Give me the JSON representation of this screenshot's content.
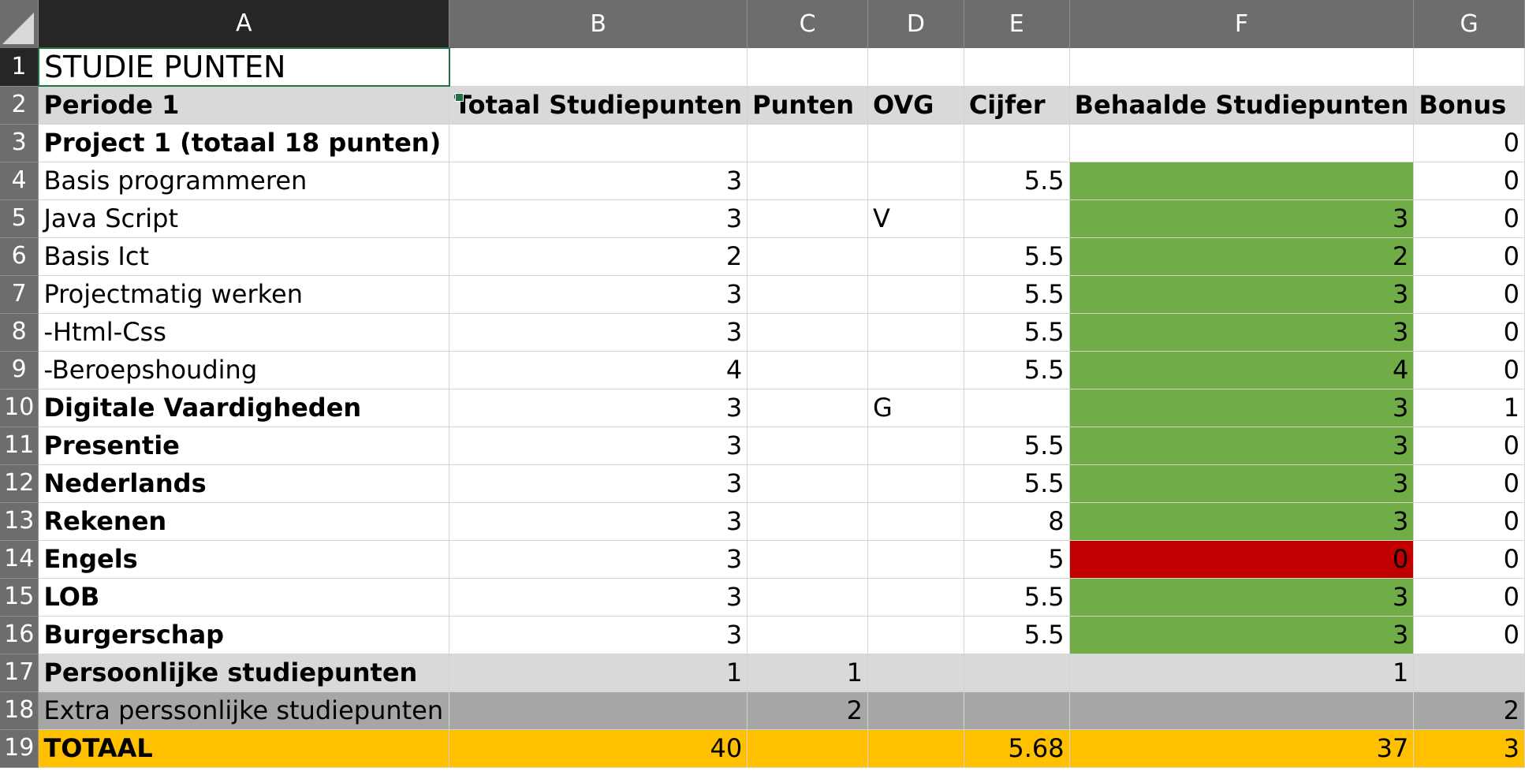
{
  "colors": {
    "header_bg": "#6d6d6d",
    "selected_header_bg": "#262626",
    "selection_border": "#217346",
    "band_light_gray": "#d9d9d9",
    "band_dark_gray": "#a6a6a6",
    "total_gold": "#ffc000",
    "pass_green": "#70ad47",
    "fail_red": "#c00000"
  },
  "icons": {
    "corner": "select-all-triangle-icon"
  },
  "columns": [
    "A",
    "B",
    "C",
    "D",
    "E",
    "F",
    "G"
  ],
  "row_numbers": [
    "1",
    "2",
    "3",
    "4",
    "5",
    "6",
    "7",
    "8",
    "9",
    "10",
    "11",
    "12",
    "13",
    "14",
    "15",
    "16",
    "17",
    "18",
    "19"
  ],
  "selected_cell": "A1",
  "cells": {
    "r1": {
      "a": "STUDIE PUNTEN"
    },
    "r2": {
      "a": "Periode 1",
      "b": "Totaal Studiepunten",
      "c": "Punten",
      "d": "OVG",
      "e": "Cijfer",
      "f": "Behaalde Studiepunten",
      "g": "Bonus"
    },
    "r3": {
      "a": "Project 1 (totaal 18 punten)",
      "g": "0"
    },
    "r4": {
      "a": "Basis programmeren",
      "b": "3",
      "e": "5.5",
      "g": "0"
    },
    "r5": {
      "a": "Java Script",
      "b": "3",
      "d": "V",
      "f": "3",
      "g": "0"
    },
    "r6": {
      "a": "Basis Ict",
      "b": "2",
      "e": "5.5",
      "f": "2",
      "g": "0"
    },
    "r7": {
      "a": "Projectmatig werken",
      "b": "3",
      "e": "5.5",
      "f": "3",
      "g": "0"
    },
    "r8": {
      "a": "-Html-Css",
      "b": "3",
      "e": "5.5",
      "f": "3",
      "g": "0"
    },
    "r9": {
      "a": "-Beroepshouding",
      "b": "4",
      "e": "5.5",
      "f": "4",
      "g": "0"
    },
    "r10": {
      "a": "Digitale Vaardigheden",
      "b": "3",
      "d": "G",
      "f": "3",
      "g": "1"
    },
    "r11": {
      "a": "Presentie",
      "b": "3",
      "e": "5.5",
      "f": "3",
      "g": "0"
    },
    "r12": {
      "a": "Nederlands",
      "b": "3",
      "e": "5.5",
      "f": "3",
      "g": "0"
    },
    "r13": {
      "a": "Rekenen",
      "b": "3",
      "e": "8",
      "f": "3",
      "g": "0"
    },
    "r14": {
      "a": "Engels",
      "b": "3",
      "e": "5",
      "f": "0",
      "g": "0"
    },
    "r15": {
      "a": "LOB",
      "b": "3",
      "e": "5.5",
      "f": "3",
      "g": "0"
    },
    "r16": {
      "a": "Burgerschap",
      "b": "3",
      "e": "5.5",
      "f": "3",
      "g": "0"
    },
    "r17": {
      "a": "Persoonlijke studiepunten",
      "b": "1",
      "c": "1",
      "f": "1"
    },
    "r18": {
      "a": "Extra perssonlijke studiepunten",
      "c": "2",
      "g": "2"
    },
    "r19": {
      "a": "TOTAAL",
      "b": "40",
      "e": "5.68",
      "f": "37",
      "g": "3"
    }
  }
}
